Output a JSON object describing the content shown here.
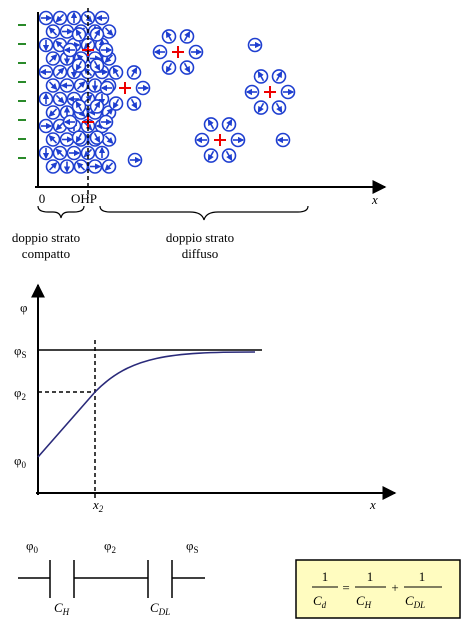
{
  "top": {
    "tick_zero": "0",
    "tick_ohp": "OHP",
    "axis_x": "x",
    "compact_label": [
      "doppio strato",
      "compatto"
    ],
    "diffuse_label": [
      "doppio strato",
      "diffuso"
    ]
  },
  "potential_plot": {
    "axis_y": "φ",
    "levels": [
      {
        "symbol": "φ",
        "sub": "S"
      },
      {
        "symbol": "φ",
        "sub": "2"
      },
      {
        "symbol": "φ",
        "sub": "0"
      }
    ],
    "x2": {
      "symbol": "x",
      "sub": "2"
    },
    "axis_x": "x"
  },
  "circuit": {
    "nodes": [
      {
        "symbol": "φ",
        "sub": "0"
      },
      {
        "symbol": "φ",
        "sub": "2"
      },
      {
        "symbol": "φ",
        "sub": "S"
      }
    ],
    "capacitors": [
      {
        "symbol": "C",
        "sub": "H"
      },
      {
        "symbol": "C",
        "sub": "DL"
      }
    ]
  },
  "formula": {
    "numerator": "1",
    "equals": "=",
    "plus": "+",
    "lhs": {
      "symbol": "C",
      "sub": "d"
    },
    "terms": [
      {
        "symbol": "C",
        "sub": "H"
      },
      {
        "symbol": "C",
        "sub": "DL"
      }
    ]
  }
}
